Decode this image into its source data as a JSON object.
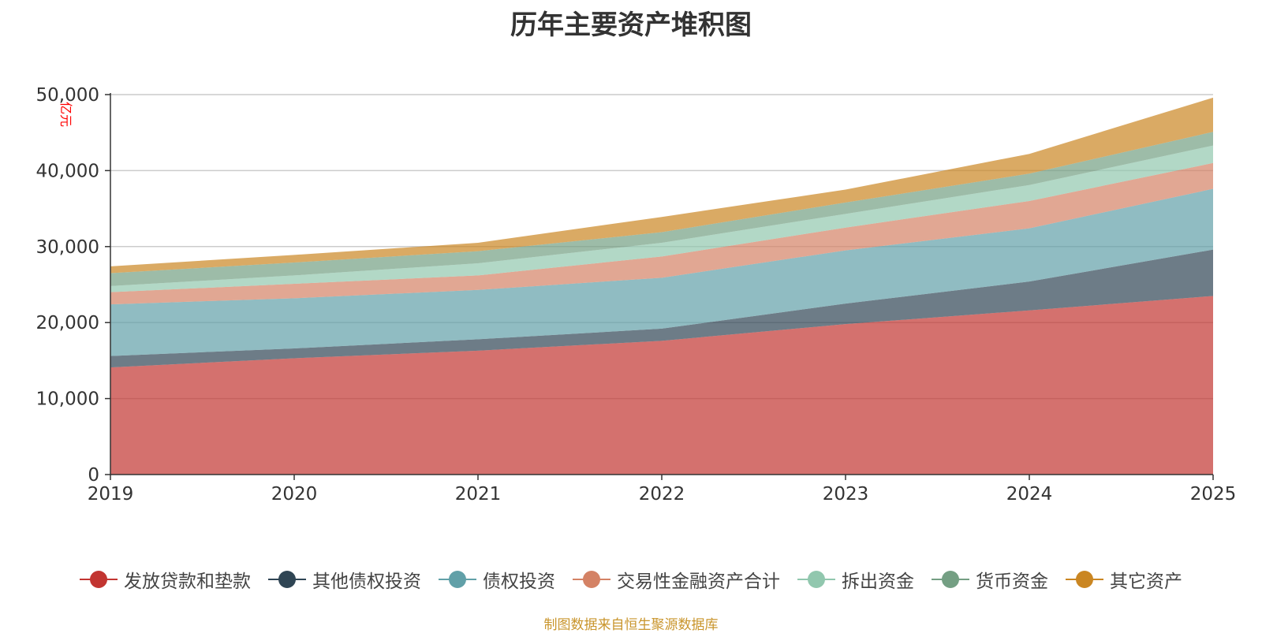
{
  "chart_data": {
    "type": "area",
    "stacked": true,
    "title": "历年主要资产堆积图",
    "ylabel": "亿元",
    "xlabel": "",
    "categories": [
      "2019",
      "2020",
      "2021",
      "2022",
      "2023",
      "2024",
      "2025"
    ],
    "ylim": [
      0,
      50000
    ],
    "yticks": [
      0,
      10000,
      20000,
      30000,
      40000,
      50000
    ],
    "ytick_labels": [
      "0",
      "10,000",
      "20,000",
      "30,000",
      "40,000",
      "50,000"
    ],
    "grid": true,
    "legend_position": "bottom",
    "series": [
      {
        "name": "发放贷款和垫款",
        "color": "#c23531",
        "values": [
          14100,
          15300,
          16300,
          17600,
          19800,
          21600,
          23500
        ]
      },
      {
        "name": "其他债权投资",
        "color": "#2f4554",
        "values": [
          1500,
          1300,
          1500,
          1600,
          2700,
          3800,
          6100
        ]
      },
      {
        "name": "债权投资",
        "color": "#61a0a8",
        "values": [
          6800,
          6600,
          6500,
          6700,
          7000,
          7000,
          8000
        ]
      },
      {
        "name": "交易性金融资产合计",
        "color": "#d48265",
        "values": [
          1600,
          1900,
          1900,
          2800,
          3000,
          3600,
          3400
        ]
      },
      {
        "name": "拆出资金",
        "color": "#91c7ae",
        "values": [
          800,
          1100,
          1600,
          1800,
          1800,
          2100,
          2300
        ]
      },
      {
        "name": "货币资金",
        "color": "#749f83",
        "values": [
          1700,
          1700,
          1600,
          1400,
          1500,
          1500,
          1800
        ]
      },
      {
        "name": "其它资产",
        "color": "#ca8622",
        "values": [
          900,
          1000,
          1100,
          2000,
          1700,
          2600,
          4500
        ]
      }
    ]
  },
  "source_note": "制图数据来自恒生聚源数据库"
}
